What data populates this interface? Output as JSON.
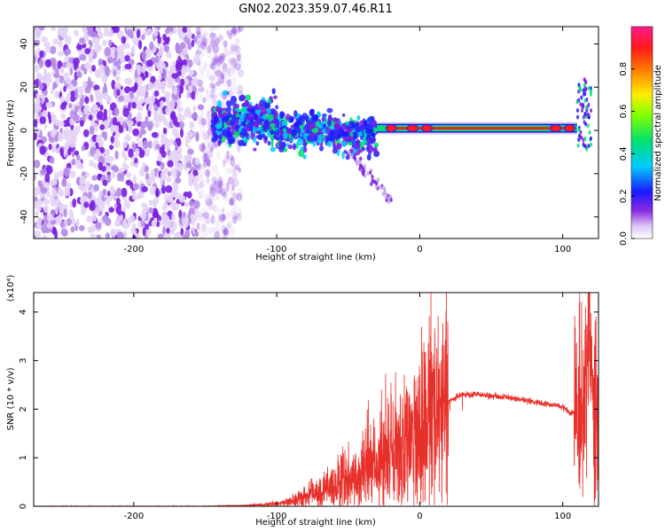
{
  "figure": {
    "title": "GN02.2023.359.07.46.R11"
  },
  "chart_data": [
    {
      "type": "heatmap",
      "title": "",
      "xlabel": "Height of straight line (km)",
      "ylabel": "Frequency (Hz)",
      "xlim": [
        -270,
        125
      ],
      "ylim": [
        -50,
        48
      ],
      "x_ticks": [
        -200,
        -100,
        0,
        100
      ],
      "y_ticks": [
        -40,
        -20,
        0,
        20,
        40
      ],
      "colorbar": {
        "label": "Normalized spectral amplitude",
        "range": [
          0,
          1
        ],
        "ticks": [
          0.0,
          0.2,
          0.4,
          0.6,
          0.8
        ],
        "tick_labels": [
          "0.0",
          "0.2",
          "0.4",
          "0.6",
          "0.8"
        ],
        "colormap": "rainbow (white-violet-blue-cyan-green-yellow-red-magenta)"
      },
      "features": [
        {
          "name": "noise",
          "x_range": [
            -270,
            -140
          ],
          "freq_range": [
            -50,
            48
          ],
          "amplitude": 0.1
        },
        {
          "name": "broad band",
          "x_range": [
            -145,
            -30
          ],
          "freq_range": [
            -15,
            15
          ],
          "amplitude": 0.3
        },
        {
          "name": "narrow line",
          "x_range": [
            -30,
            110
          ],
          "frequency": 1,
          "amplitude": 0.95
        },
        {
          "name": "tail streak",
          "x_range": [
            -50,
            -20
          ],
          "freq_range": [
            -32,
            -10
          ],
          "amplitude": 0.1
        },
        {
          "name": "end spike",
          "x_range": [
            110,
            120
          ],
          "freq_range": [
            -10,
            25
          ],
          "amplitude": 0.4
        }
      ]
    },
    {
      "type": "line",
      "title": "",
      "xlabel": "Height of straight line (km)",
      "ylabel": "SNR (10 * v/v)",
      "y_multiplier": "(x10⁴)",
      "xlim": [
        -270,
        125
      ],
      "ylim": [
        0,
        4.4
      ],
      "x_ticks": [
        -200,
        -100,
        0,
        100
      ],
      "y_ticks": [
        0,
        1,
        2,
        3,
        4
      ],
      "color": "#e8302a",
      "series": [
        {
          "x": [
            -270,
            -200,
            -150,
            -120,
            -100,
            -90,
            -80,
            -70,
            -60,
            -50,
            -40,
            -30,
            -20,
            -10,
            0,
            10,
            20,
            30,
            40,
            50,
            60,
            70,
            80,
            90,
            95,
            100,
            105,
            110,
            115,
            118,
            120,
            125
          ],
          "y": [
            0.0,
            0.0,
            0.0,
            0.02,
            0.05,
            0.1,
            0.2,
            0.3,
            0.4,
            0.55,
            0.7,
            0.9,
            1.15,
            1.4,
            1.65,
            1.9,
            2.15,
            2.3,
            2.3,
            2.27,
            2.24,
            2.2,
            2.15,
            2.1,
            2.08,
            2.05,
            1.9,
            1.95,
            1.9,
            3.2,
            1.5,
            2.1
          ]
        }
      ]
    }
  ]
}
